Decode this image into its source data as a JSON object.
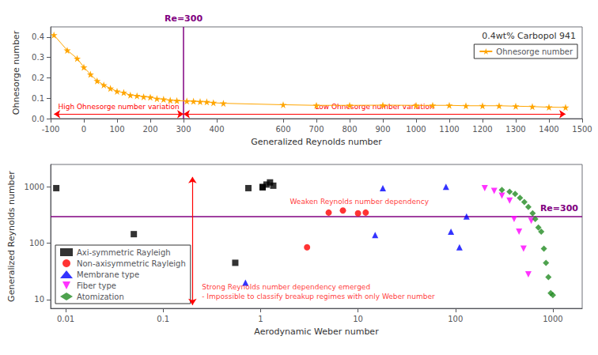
{
  "chart_data": [
    {
      "type": "line",
      "xlabel": "Generalized Reynolds number",
      "ylabel": "Ohnesorge number",
      "x": [
        -90,
        -50,
        -20,
        0,
        20,
        40,
        60,
        80,
        100,
        120,
        140,
        160,
        180,
        200,
        220,
        240,
        260,
        280,
        310,
        330,
        350,
        370,
        390,
        420,
        600,
        700,
        800,
        900,
        1000,
        1050,
        1100,
        1150,
        1200,
        1250,
        1300,
        1350,
        1400,
        1450
      ],
      "series": [
        {
          "name": "Ohnesorge number",
          "color": "#FFA500",
          "marker": "star",
          "values": [
            0.41,
            0.335,
            0.295,
            0.252,
            0.217,
            0.185,
            0.165,
            0.148,
            0.134,
            0.128,
            0.115,
            0.112,
            0.107,
            0.105,
            0.098,
            0.095,
            0.09,
            0.088,
            0.086,
            0.085,
            0.083,
            0.082,
            0.078,
            0.075,
            0.068,
            0.065,
            0.065,
            0.066,
            0.065,
            0.065,
            0.065,
            0.063,
            0.063,
            0.063,
            0.061,
            0.059,
            0.056,
            0.055
          ]
        }
      ],
      "xlim": [
        -100,
        1500
      ],
      "ylim": [
        0,
        0.45
      ],
      "xticks": [
        -100,
        0,
        100,
        200,
        300,
        400,
        600,
        700,
        800,
        900,
        1000,
        1100,
        1200,
        1300,
        1400,
        1500
      ],
      "yticks": [
        {
          "value": 0,
          "label": "0.0"
        },
        0.1,
        0.2,
        0.3,
        0.4
      ],
      "grid": false,
      "legend": "upper right",
      "legend_title": "0.4wt% Carbopol 941",
      "annotations": [
        {
          "type": "vline",
          "x": 300,
          "text": "Re=300",
          "color": "#800080"
        },
        {
          "type": "arrow",
          "x1": -90,
          "x2": 300,
          "y": 0.022,
          "text": "High Ohnesorge number variation",
          "color": "#FF0000"
        },
        {
          "type": "arrow",
          "x1": 300,
          "x2": 1450,
          "y": 0.022,
          "text": "Low Ohnesorge number variation",
          "color": "#FF0000"
        }
      ]
    },
    {
      "type": "scatter",
      "xlabel": "Aerodynamic Weber number",
      "ylabel": "Generalized Reynolds number",
      "log": true,
      "series": [
        {
          "name": "Axi-symmetric Rayleigh",
          "color": "#000000",
          "marker": "square",
          "x": [
            0.008,
            0.05,
            0.55,
            0.75,
            1.05,
            1.15,
            1.25,
            1.05,
            1.35
          ],
          "values": [
            950,
            145,
            45,
            950,
            1000,
            1100,
            1200,
            980,
            1050
          ]
        },
        {
          "name": "Non-axisymmetric Rayleigh",
          "color": "#FF0000",
          "marker": "circle",
          "x": [
            3.0,
            5.0,
            7.0,
            10.0,
            12.0
          ],
          "values": [
            85,
            350,
            380,
            340,
            350
          ]
        },
        {
          "name": "Membrane type",
          "color": "#0000FF",
          "marker": "triangle-up",
          "x": [
            0.7,
            15.0,
            18.0,
            80.0,
            90.0,
            110.0,
            130.0
          ],
          "values": [
            20,
            140,
            950,
            1000,
            160,
            85,
            300
          ]
        },
        {
          "name": "Fiber type",
          "color": "#FF00FF",
          "marker": "triangle-down",
          "x": [
            200,
            250,
            300,
            360,
            400,
            450,
            500,
            560,
            600
          ],
          "values": [
            950,
            850,
            700,
            570,
            270,
            160,
            80,
            28,
            250
          ]
        },
        {
          "name": "Atomization",
          "color": "#228B22",
          "marker": "diamond",
          "x": [
            300,
            360,
            410,
            460,
            510,
            560,
            620,
            660,
            710,
            760,
            810,
            850,
            900,
            950,
            1000
          ],
          "values": [
            880,
            820,
            750,
            640,
            540,
            440,
            340,
            270,
            190,
            160,
            80,
            45,
            25,
            13,
            12
          ]
        }
      ],
      "xlim": [
        0.007,
        2000
      ],
      "ylim": [
        7,
        2500
      ],
      "xticks": [
        0.01,
        0.1,
        1,
        10,
        100,
        1000
      ],
      "yticks": [
        10,
        100,
        1000
      ],
      "grid": false,
      "legend": "lower left",
      "annotations": [
        {
          "type": "hline",
          "y": 300,
          "text": "Re=300",
          "color": "#800080"
        },
        {
          "type": "arrow",
          "x": 0.2,
          "y1": 8,
          "y2": 1500,
          "color": "#FF0000"
        },
        {
          "type": "text",
          "x": 2.0,
          "y": 550,
          "text": "Weaken Reynolds number dependency",
          "color": "#FF0000",
          "anchor": "middle"
        },
        {
          "type": "text",
          "x": 0.25,
          "y": 20,
          "text": "Strong Reynolds number dependency emerged\n- Impossible to classify breakup regimes with only Weber number",
          "color": "#FF0000",
          "anchor": "top"
        }
      ]
    }
  ]
}
